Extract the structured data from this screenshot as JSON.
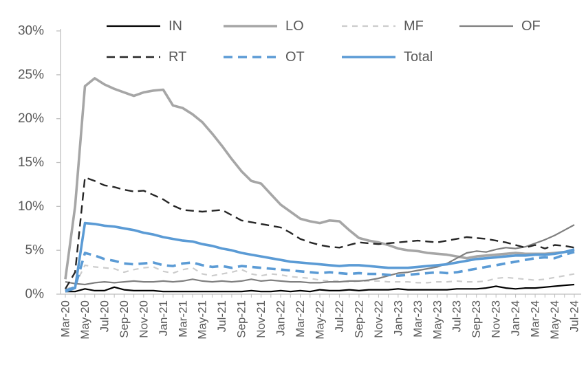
{
  "figure": {
    "background": "#ffffff",
    "axis_color": "#bfbfbf",
    "label_color": "#595959"
  },
  "chart_data": {
    "type": "line",
    "title": "",
    "xlabel": "",
    "ylabel": "",
    "ylim": [
      0,
      30
    ],
    "ytick_step": 5,
    "ytick_suffix": "%",
    "ytick_labels": [
      "0%",
      "5%",
      "10%",
      "15%",
      "20%",
      "25%",
      "30%"
    ],
    "grid": false,
    "legend_position": "top",
    "legend_rows": [
      [
        "IN",
        "LO",
        "MF",
        "OF"
      ],
      [
        "RT",
        "OT",
        "Total"
      ]
    ],
    "x_tick_label_step": 2,
    "categories": [
      "Mar-20",
      "Apr-20",
      "May-20",
      "Jun-20",
      "Jul-20",
      "Aug-20",
      "Sep-20",
      "Oct-20",
      "Nov-20",
      "Dec-20",
      "Jan-21",
      "Feb-21",
      "Mar-21",
      "Apr-21",
      "May-21",
      "Jun-21",
      "Jul-21",
      "Aug-21",
      "Sep-21",
      "Oct-21",
      "Nov-21",
      "Dec-21",
      "Jan-22",
      "Feb-22",
      "Mar-22",
      "Apr-22",
      "May-22",
      "Jun-22",
      "Jul-22",
      "Aug-22",
      "Sep-22",
      "Oct-22",
      "Nov-22",
      "Dec-22",
      "Jan-23",
      "Feb-23",
      "Mar-23",
      "Apr-23",
      "May-23",
      "Jun-23",
      "Jul-23",
      "Aug-23",
      "Sep-23",
      "Oct-23",
      "Nov-23",
      "Dec-23",
      "Jan-24",
      "Feb-24",
      "Mar-24",
      "Apr-24",
      "May-24",
      "Jun-24",
      "Jul-24"
    ],
    "series": [
      {
        "name": "IN",
        "color": "#000000",
        "dash": "",
        "width": 2.2,
        "values": [
          0.3,
          0.3,
          0.6,
          0.4,
          0.4,
          0.8,
          0.5,
          0.4,
          0.4,
          0.4,
          0.3,
          0.3,
          0.3,
          0.3,
          0.3,
          0.3,
          0.3,
          0.3,
          0.3,
          0.4,
          0.3,
          0.3,
          0.4,
          0.3,
          0.4,
          0.3,
          0.5,
          0.4,
          0.4,
          0.5,
          0.4,
          0.5,
          0.5,
          0.5,
          0.6,
          0.5,
          0.5,
          0.5,
          0.5,
          0.5,
          0.6,
          0.6,
          0.6,
          0.7,
          0.9,
          0.7,
          0.6,
          0.7,
          0.7,
          0.8,
          0.9,
          1.0,
          1.1
        ]
      },
      {
        "name": "LO",
        "color": "#a6a6a6",
        "dash": "",
        "width": 3.6,
        "values": [
          1.7,
          10.0,
          23.7,
          24.6,
          23.9,
          23.4,
          23.0,
          22.6,
          23.0,
          23.2,
          23.3,
          21.5,
          21.2,
          20.5,
          19.6,
          18.3,
          16.9,
          15.4,
          14.0,
          12.9,
          12.6,
          11.4,
          10.2,
          9.4,
          8.6,
          8.3,
          8.1,
          8.4,
          8.3,
          7.3,
          6.4,
          6.1,
          5.9,
          5.6,
          5.2,
          5.0,
          4.9,
          4.7,
          4.6,
          4.5,
          4.3,
          4.1,
          4.3,
          4.4,
          4.5,
          4.6,
          4.7,
          4.6,
          4.6,
          4.6,
          4.7,
          4.8,
          5.0
        ]
      },
      {
        "name": "MF",
        "color": "#cccccc",
        "dash": "8 7",
        "width": 2.2,
        "values": [
          0.5,
          1.0,
          3.3,
          3.1,
          3.0,
          2.9,
          2.5,
          2.8,
          3.0,
          3.1,
          2.6,
          2.4,
          2.8,
          3.0,
          2.3,
          2.1,
          2.3,
          2.5,
          2.8,
          2.3,
          2.1,
          2.3,
          2.2,
          2.0,
          1.9,
          1.8,
          1.6,
          1.5,
          1.5,
          1.4,
          1.5,
          1.5,
          1.5,
          1.4,
          1.4,
          1.4,
          1.3,
          1.3,
          1.4,
          1.4,
          1.5,
          1.4,
          1.4,
          1.5,
          1.8,
          1.9,
          1.8,
          1.7,
          1.6,
          1.7,
          1.9,
          2.1,
          2.3
        ]
      },
      {
        "name": "OF",
        "color": "#7f7f7f",
        "dash": "",
        "width": 2.2,
        "values": [
          1.4,
          1.2,
          1.1,
          1.3,
          1.4,
          1.3,
          1.4,
          1.5,
          1.4,
          1.4,
          1.5,
          1.4,
          1.5,
          1.7,
          1.5,
          1.4,
          1.5,
          1.4,
          1.5,
          1.7,
          1.5,
          1.6,
          1.5,
          1.4,
          1.4,
          1.3,
          1.3,
          1.4,
          1.4,
          1.5,
          1.5,
          1.6,
          1.8,
          2.1,
          2.4,
          2.5,
          2.7,
          2.9,
          3.1,
          3.5,
          4.1,
          4.7,
          4.9,
          4.8,
          5.1,
          5.3,
          5.2,
          5.4,
          5.8,
          6.2,
          6.7,
          7.3,
          7.9
        ]
      },
      {
        "name": "RT",
        "color": "#262626",
        "dash": "12 7",
        "width": 2.4,
        "values": [
          0.6,
          2.5,
          13.3,
          12.9,
          12.4,
          12.2,
          11.9,
          11.7,
          11.8,
          11.3,
          10.8,
          10.1,
          9.6,
          9.5,
          9.4,
          9.5,
          9.6,
          9.0,
          8.4,
          8.2,
          8.0,
          7.8,
          7.6,
          7.0,
          6.3,
          5.9,
          5.6,
          5.4,
          5.3,
          5.6,
          5.9,
          5.8,
          5.7,
          5.8,
          5.9,
          6.0,
          6.1,
          6.0,
          5.9,
          6.1,
          6.3,
          6.5,
          6.4,
          6.3,
          6.1,
          5.9,
          5.6,
          5.3,
          5.6,
          5.2,
          5.6,
          5.5,
          5.3
        ]
      },
      {
        "name": "OT",
        "color": "#5b9bd5",
        "dash": "13 8",
        "width": 3.6,
        "values": [
          0.4,
          0.8,
          4.7,
          4.4,
          4.0,
          3.8,
          3.5,
          3.4,
          3.5,
          3.6,
          3.3,
          3.2,
          3.5,
          3.6,
          3.3,
          3.1,
          3.2,
          3.0,
          3.2,
          3.1,
          3.0,
          2.9,
          2.8,
          2.7,
          2.6,
          2.5,
          2.4,
          2.5,
          2.4,
          2.3,
          2.4,
          2.3,
          2.3,
          2.2,
          2.1,
          2.2,
          2.3,
          2.4,
          2.5,
          2.4,
          2.5,
          2.7,
          2.9,
          3.1,
          3.3,
          3.5,
          3.7,
          3.9,
          4.1,
          4.2,
          4.1,
          4.5,
          4.8
        ]
      },
      {
        "name": "Total",
        "color": "#5b9bd5",
        "dash": "",
        "width": 3.6,
        "values": [
          0.3,
          0.7,
          8.1,
          8.0,
          7.8,
          7.7,
          7.5,
          7.3,
          7.0,
          6.8,
          6.5,
          6.3,
          6.1,
          6.0,
          5.7,
          5.5,
          5.2,
          5.0,
          4.7,
          4.5,
          4.3,
          4.1,
          3.9,
          3.7,
          3.6,
          3.5,
          3.4,
          3.3,
          3.2,
          3.3,
          3.3,
          3.2,
          3.1,
          3.0,
          3.0,
          3.0,
          3.1,
          3.2,
          3.3,
          3.4,
          3.6,
          3.8,
          4.0,
          4.1,
          4.2,
          4.3,
          4.4,
          4.4,
          4.5,
          4.5,
          4.6,
          4.8,
          5.1
        ]
      }
    ]
  }
}
